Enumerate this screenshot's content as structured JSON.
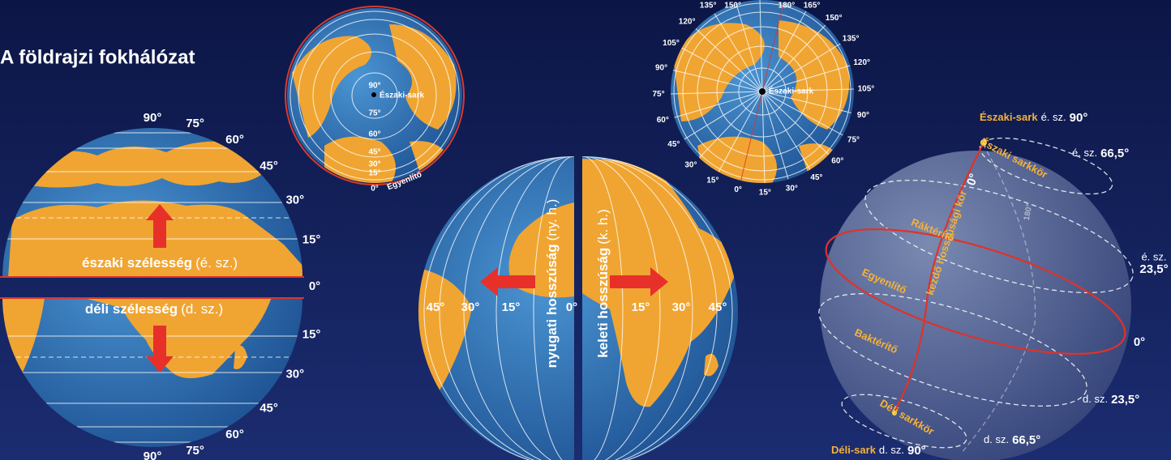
{
  "title": "A földrajzi fokhálózat",
  "latitude_globe": {
    "north_ticks": [
      "90°",
      "75°",
      "60°",
      "45°",
      "30°",
      "15°"
    ],
    "equator": "0°",
    "south_ticks": [
      "15°",
      "30°",
      "45°",
      "60°",
      "75°",
      "90°"
    ],
    "north_label": "északi szélesség",
    "north_abbr": "(é. sz.)",
    "south_label": "déli szélesség",
    "south_abbr": "(d. sz.)"
  },
  "polar_globe_small": {
    "ticks": [
      "90°",
      "75°",
      "60°",
      "45°",
      "30°",
      "15°",
      "0°"
    ],
    "pole": "Északi-sark",
    "equator": "Egyenlítő"
  },
  "longitude_globe": {
    "west_label": "nyugati hosszúság",
    "west_abbr": "(ny. h.)",
    "east_label": "keleti hosszúság",
    "east_abbr": "(k. h.)",
    "west_ticks": [
      "45°",
      "30°",
      "15°"
    ],
    "prime": "0°",
    "east_ticks": [
      "15°",
      "30°",
      "45°"
    ]
  },
  "polar_globe_large": {
    "west_ticks": [
      "0°",
      "15°",
      "30°",
      "45°",
      "60°",
      "75°",
      "90°",
      "105°",
      "120°",
      "135°",
      "150°"
    ],
    "top_tick": "180°",
    "east_ticks": [
      "15°",
      "30°",
      "45°",
      "60°",
      "75°",
      "90°",
      "105°",
      "120°",
      "135°",
      "150°",
      "165°"
    ],
    "pole": "Északi-sark"
  },
  "globe_3d": {
    "north_pole": "Északi-sark",
    "north_pole_lat": "é. sz.",
    "north_pole_deg": "90°",
    "arctic_circle": "Északi sarkkör",
    "arctic_lat": "é. sz.",
    "arctic_deg": "66,5°",
    "prime_deg": "0°",
    "prime_meridian": "kezdő hosszúsági kör",
    "antimeridian": "180°",
    "cancer": "Ráktérítő",
    "cancer_lat": "é. sz.",
    "cancer_deg": "23,5°",
    "equator": "Egyenlítő",
    "equator_deg": "0°",
    "capricorn": "Baktérítő",
    "capricorn_lat": "d. sz.",
    "capricorn_deg": "23,5°",
    "antarctic_circle": "Déli sarkkör",
    "antarctic_lat": "d. sz.",
    "antarctic_deg": "66,5°",
    "south_pole": "Déli-sark",
    "south_pole_lat": "d. sz.",
    "south_pole_deg": "90°"
  }
}
